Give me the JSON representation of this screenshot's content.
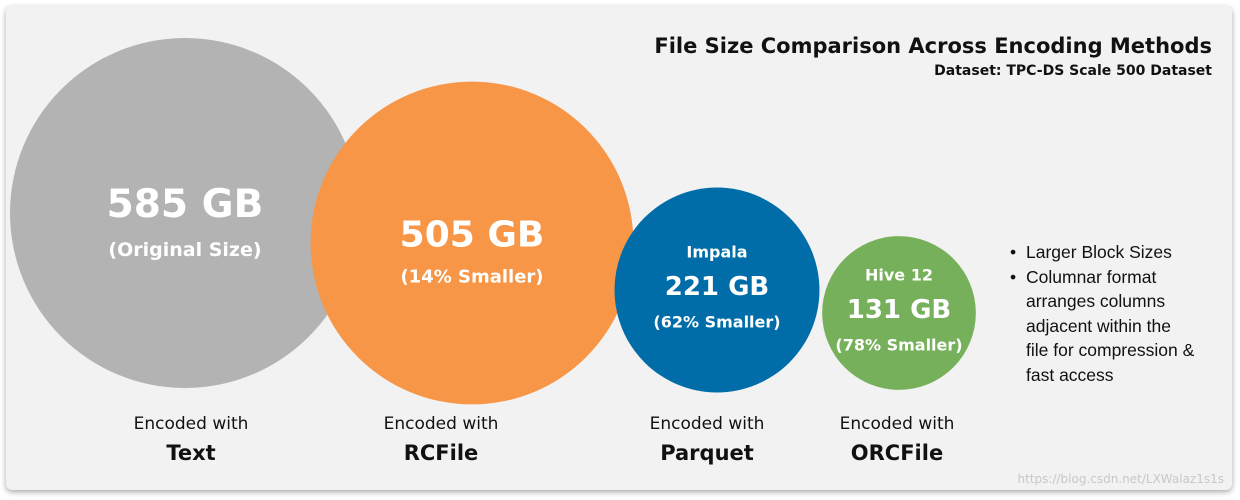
{
  "title": "File Size Comparison Across Encoding Methods",
  "subtitle": "Dataset: TPC-DS Scale 500 Dataset",
  "chart_data": {
    "type": "bubble",
    "unit": "GB",
    "series": [
      {
        "format": "Text",
        "engine": "",
        "value": 585,
        "value_label": "585 GB",
        "note": "(Original Size)",
        "caption_prefix": "Encoded with",
        "color": "#b3b3b3"
      },
      {
        "format": "RCFile",
        "engine": "",
        "value": 505,
        "value_label": "505 GB",
        "note": "(14% Smaller)",
        "caption_prefix": "Encoded with",
        "color": "#f79646"
      },
      {
        "format": "Parquet",
        "engine": "Impala",
        "value": 221,
        "value_label": "221 GB",
        "note": "(62% Smaller)",
        "caption_prefix": "Encoded with",
        "color": "#006da9"
      },
      {
        "format": "ORCFile",
        "engine": "Hive 12",
        "value": 131,
        "value_label": "131 GB",
        "note": "(78% Smaller)",
        "caption_prefix": "Encoded with",
        "color": "#77b05a"
      }
    ]
  },
  "notes": [
    "Larger Block Sizes",
    "Columnar format arranges columns adjacent within the file for compression & fast access"
  ],
  "watermark": "https://blog.csdn.net/LXWalaz1s1s"
}
